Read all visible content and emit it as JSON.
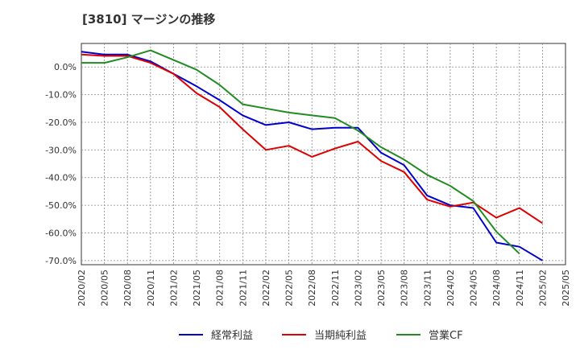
{
  "chart_data": {
    "type": "line",
    "title": "[3810]  マージンの推移",
    "xlabel": "",
    "ylabel": "",
    "ylim": [
      -71.5,
      8.5
    ],
    "y_ticks": [
      0,
      -10,
      -20,
      -30,
      -40,
      -50,
      -60,
      -70
    ],
    "y_tick_labels": [
      "0.0%",
      "-10.0%",
      "-20.0%",
      "-30.0%",
      "-40.0%",
      "-50.0%",
      "-60.0%",
      "-70.0%"
    ],
    "x": [
      "2020/02",
      "2020/05",
      "2020/08",
      "2020/11",
      "2021/02",
      "2021/05",
      "2021/08",
      "2021/11",
      "2022/02",
      "2022/05",
      "2022/08",
      "2022/11",
      "2023/02",
      "2023/05",
      "2023/08",
      "2023/11",
      "2024/02",
      "2024/05",
      "2024/08",
      "2024/11",
      "2025/02",
      "2025/05"
    ],
    "grid": true,
    "legend_position": "bottom",
    "series": [
      {
        "name": "経常利益",
        "color": "#0000cc",
        "values": [
          5.5,
          4.5,
          4.5,
          2.0,
          -2.5,
          -7.0,
          -12.0,
          -17.5,
          -21.0,
          -20.0,
          -22.5,
          -22.0,
          -22.0,
          -31.0,
          -35.5,
          -46.5,
          -50.0,
          -51.0,
          -63.5,
          -65.0,
          -70.0,
          null
        ]
      },
      {
        "name": "当期純利益",
        "color": "#dd0000",
        "values": [
          4.5,
          4.0,
          4.0,
          1.5,
          -2.5,
          -9.5,
          -14.5,
          -22.5,
          -30.0,
          -28.5,
          -32.5,
          -29.5,
          -27.0,
          -34.0,
          -38.0,
          -48.0,
          -50.5,
          -49.0,
          -54.5,
          -51.0,
          -56.5,
          null
        ]
      },
      {
        "name": "営業CF",
        "color": "#228B22",
        "values": [
          1.5,
          1.5,
          3.5,
          6.0,
          2.5,
          -1.0,
          -6.5,
          -13.5,
          -15.0,
          -16.5,
          -17.5,
          -18.5,
          -23.0,
          -29.0,
          -33.5,
          -39.0,
          -43.0,
          -48.5,
          -59.5,
          -67.5,
          null,
          null
        ]
      }
    ]
  }
}
